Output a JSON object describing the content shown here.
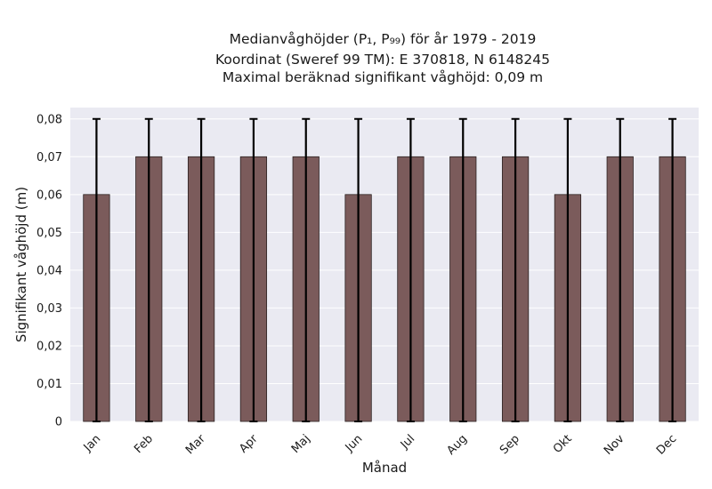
{
  "chart_data": {
    "type": "bar",
    "title_lines": [
      "Medianvåghöjder (P₁, P₉₉) för år 1979 - 2019",
      "Koordinat (Sweref 99 TM): E 370818, N 6148245",
      "Maximal beräknad signifikant våghöjd: 0,09 m"
    ],
    "xlabel": "Månad",
    "ylabel": "Signifikant våghöjd (m)",
    "categories": [
      "Jan",
      "Feb",
      "Mar",
      "Apr",
      "Maj",
      "Jun",
      "Jul",
      "Aug",
      "Sep",
      "Okt",
      "Nov",
      "Dec"
    ],
    "values": [
      0.06,
      0.07,
      0.07,
      0.07,
      0.07,
      0.06,
      0.07,
      0.07,
      0.07,
      0.06,
      0.07,
      0.07
    ],
    "error_low": [
      0,
      0,
      0,
      0,
      0,
      0,
      0,
      0,
      0,
      0,
      0,
      0
    ],
    "error_high": [
      0.08,
      0.08,
      0.08,
      0.08,
      0.08,
      0.08,
      0.08,
      0.08,
      0.08,
      0.08,
      0.08,
      0.08
    ],
    "ylim": [
      0,
      0.083
    ],
    "yticks": [
      0,
      0.01,
      0.02,
      0.03,
      0.04,
      0.05,
      0.06,
      0.07,
      0.08
    ],
    "ytick_labels": [
      "0",
      "0,01",
      "0,02",
      "0,03",
      "0,04",
      "0,05",
      "0,06",
      "0,07",
      "0,08"
    ],
    "grid": true,
    "colors": {
      "bar": "#7b5b5b",
      "bar_edge": "#2a2020",
      "error": "#000000",
      "plot_bg": "#eaeaf2",
      "grid": "#ffffff"
    }
  }
}
